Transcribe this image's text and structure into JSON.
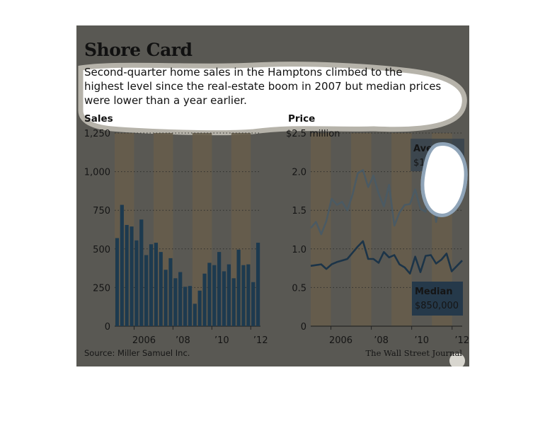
{
  "title": "Shore Card",
  "subtitle_lines": [
    "Second-quarter home sales in the Hamptons climbed to the",
    "highest level since the real-estate boom in 2007 but median prices",
    "were lower than a year earlier."
  ],
  "source": "Source: Miller Samuel Inc.",
  "credit": "The Wall Street Journal",
  "colors": {
    "background": "#595853",
    "band": "#665d4b",
    "bar": "#1d3a4f",
    "average_line": "#4b5a63",
    "median_line": "#1c3448",
    "label_box": "#25394a",
    "label_text": "#d8dde0",
    "gridline": "#2f2f2c",
    "text": "#111111"
  },
  "chart_data": [
    {
      "type": "bar",
      "ylabel": "Sales",
      "ylim": [
        0,
        1250
      ],
      "yticks": [
        0,
        250,
        500,
        750,
        1000,
        1250
      ],
      "ytick_labels": [
        "0",
        "250",
        "500",
        "750",
        "1,000",
        "1,250"
      ],
      "xtick_labels": [
        "2006",
        "’08",
        "’10",
        "’12"
      ],
      "values": [
        570,
        785,
        655,
        645,
        555,
        690,
        460,
        530,
        540,
        480,
        365,
        440,
        310,
        350,
        255,
        260,
        145,
        230,
        340,
        410,
        395,
        480,
        355,
        400,
        310,
        495,
        395,
        400,
        285,
        540
      ]
    },
    {
      "type": "line",
      "ylabel": "Price",
      "ylim": [
        0,
        2.5
      ],
      "yticks": [
        0,
        0.5,
        1.0,
        1.5,
        2.0,
        2.5
      ],
      "ytick_labels": [
        "0",
        "0.5",
        "1.0",
        "1.5",
        "2.0",
        "$2.5 million"
      ],
      "xtick_labels": [
        "2006",
        "’08",
        "’10",
        "’12"
      ],
      "series": [
        {
          "name": "Average",
          "label_value": "$1.7M",
          "values": [
            1.27,
            1.35,
            1.19,
            1.36,
            1.65,
            1.57,
            1.61,
            1.5,
            1.7,
            1.98,
            2.02,
            1.8,
            1.95,
            1.72,
            1.55,
            1.83,
            1.3,
            1.47,
            1.57,
            1.58,
            1.77,
            1.52,
            1.48,
            1.98,
            1.35,
            1.7,
            1.78,
            1.75,
            1.6,
            1.7
          ]
        },
        {
          "name": "Median",
          "label_value": "$850,000",
          "values": [
            0.78,
            0.79,
            0.8,
            0.74,
            0.8,
            0.83,
            0.85,
            0.87,
            0.95,
            1.03,
            1.1,
            0.87,
            0.87,
            0.82,
            0.96,
            0.89,
            0.92,
            0.8,
            0.76,
            0.68,
            0.9,
            0.7,
            0.91,
            0.92,
            0.81,
            0.86,
            0.94,
            0.71,
            0.78,
            0.85
          ]
        }
      ]
    }
  ]
}
